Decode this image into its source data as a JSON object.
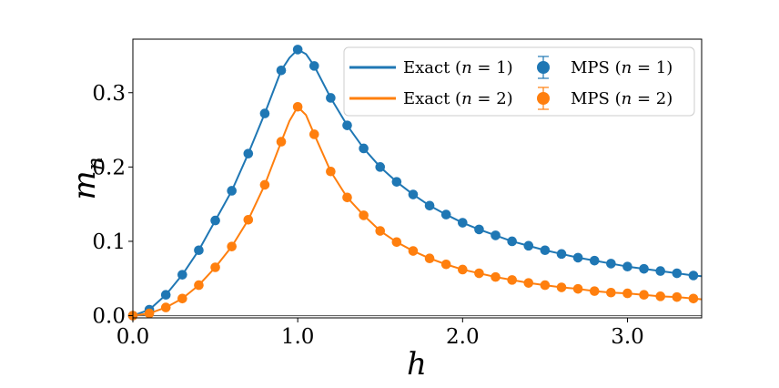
{
  "chart_data": {
    "type": "line",
    "title": "",
    "xlabel": "h",
    "ylabel": "m_n",
    "ylabel_base": "m",
    "ylabel_sub": "n",
    "xlim": [
      0.0,
      3.45
    ],
    "ylim": [
      -0.003,
      0.372
    ],
    "xticks": [
      0.0,
      1.0,
      2.0,
      3.0
    ],
    "xtick_labels": [
      "0.0",
      "1.0",
      "2.0",
      "3.0"
    ],
    "yticks": [
      0.0,
      0.1,
      0.2,
      0.3
    ],
    "ytick_labels": [
      "0.0",
      "0.1",
      "0.2",
      "0.3"
    ],
    "grid": false,
    "reference_line_y": 0.0,
    "legend_placement": "top-right",
    "colors": {
      "n1": "#1f77b4",
      "n2": "#ff7f0e"
    },
    "series": [
      {
        "name": "Exact (n = 1)",
        "kind": "line",
        "color": "#1f77b4",
        "x": [
          0.0,
          0.1,
          0.2,
          0.3,
          0.4,
          0.5,
          0.6,
          0.7,
          0.8,
          0.9,
          0.95,
          1.0,
          1.05,
          1.1,
          1.2,
          1.3,
          1.4,
          1.5,
          1.6,
          1.7,
          1.8,
          1.9,
          2.0,
          2.1,
          2.2,
          2.3,
          2.4,
          2.5,
          2.6,
          2.7,
          2.8,
          2.9,
          3.0,
          3.1,
          3.2,
          3.3,
          3.4,
          3.45
        ],
        "y": [
          0.0,
          0.008,
          0.028,
          0.055,
          0.088,
          0.128,
          0.168,
          0.218,
          0.272,
          0.33,
          0.347,
          0.358,
          0.352,
          0.336,
          0.293,
          0.256,
          0.225,
          0.2,
          0.18,
          0.163,
          0.148,
          0.136,
          0.125,
          0.116,
          0.108,
          0.1,
          0.094,
          0.088,
          0.083,
          0.078,
          0.074,
          0.07,
          0.066,
          0.063,
          0.06,
          0.057,
          0.054,
          0.053
        ]
      },
      {
        "name": "Exact (n = 2)",
        "kind": "line",
        "color": "#ff7f0e",
        "x": [
          0.0,
          0.1,
          0.2,
          0.3,
          0.4,
          0.5,
          0.6,
          0.7,
          0.8,
          0.9,
          0.95,
          1.0,
          1.05,
          1.1,
          1.2,
          1.3,
          1.4,
          1.5,
          1.6,
          1.7,
          1.8,
          1.9,
          2.0,
          2.1,
          2.2,
          2.3,
          2.4,
          2.5,
          2.6,
          2.7,
          2.8,
          2.9,
          3.0,
          3.1,
          3.2,
          3.3,
          3.4,
          3.45
        ],
        "y": [
          0.0,
          0.003,
          0.011,
          0.023,
          0.041,
          0.065,
          0.093,
          0.129,
          0.176,
          0.234,
          0.262,
          0.281,
          0.27,
          0.244,
          0.194,
          0.159,
          0.135,
          0.114,
          0.099,
          0.087,
          0.077,
          0.069,
          0.062,
          0.057,
          0.052,
          0.048,
          0.044,
          0.041,
          0.038,
          0.036,
          0.033,
          0.031,
          0.03,
          0.028,
          0.026,
          0.025,
          0.023,
          0.022
        ]
      },
      {
        "name": "MPS (n = 1)",
        "kind": "errorbar",
        "color": "#1f77b4",
        "x": [
          0.0,
          0.1,
          0.2,
          0.3,
          0.4,
          0.5,
          0.6,
          0.7,
          0.8,
          0.9,
          1.0,
          1.1,
          1.2,
          1.3,
          1.4,
          1.5,
          1.6,
          1.7,
          1.8,
          1.9,
          2.0,
          2.1,
          2.2,
          2.3,
          2.4,
          2.5,
          2.6,
          2.7,
          2.8,
          2.9,
          3.0,
          3.1,
          3.2,
          3.3,
          3.4
        ],
        "y": [
          0.0,
          0.008,
          0.028,
          0.055,
          0.088,
          0.128,
          0.168,
          0.218,
          0.272,
          0.33,
          0.358,
          0.336,
          0.293,
          0.256,
          0.225,
          0.2,
          0.18,
          0.163,
          0.148,
          0.136,
          0.125,
          0.116,
          0.108,
          0.1,
          0.094,
          0.088,
          0.083,
          0.078,
          0.074,
          0.07,
          0.066,
          0.063,
          0.06,
          0.057,
          0.054
        ],
        "xerr": 0.02
      },
      {
        "name": "MPS (n = 2)",
        "kind": "errorbar",
        "color": "#ff7f0e",
        "x": [
          0.0,
          0.1,
          0.2,
          0.3,
          0.4,
          0.5,
          0.6,
          0.7,
          0.8,
          0.9,
          1.0,
          1.1,
          1.2,
          1.3,
          1.4,
          1.5,
          1.6,
          1.7,
          1.8,
          1.9,
          2.0,
          2.1,
          2.2,
          2.3,
          2.4,
          2.5,
          2.6,
          2.7,
          2.8,
          2.9,
          3.0,
          3.1,
          3.2,
          3.3,
          3.4
        ],
        "y": [
          0.0,
          0.003,
          0.011,
          0.023,
          0.041,
          0.065,
          0.093,
          0.129,
          0.176,
          0.234,
          0.281,
          0.244,
          0.194,
          0.159,
          0.135,
          0.114,
          0.099,
          0.087,
          0.077,
          0.069,
          0.062,
          0.057,
          0.052,
          0.048,
          0.044,
          0.041,
          0.038,
          0.036,
          0.033,
          0.031,
          0.03,
          0.028,
          0.026,
          0.025,
          0.023
        ],
        "xerr": 0.02
      }
    ],
    "legend": {
      "exact_n1": {
        "prefix": "Exact (",
        "var": "n",
        "suffix": " = 1)"
      },
      "exact_n2": {
        "prefix": "Exact (",
        "var": "n",
        "suffix": " = 2)"
      },
      "mps_n1": {
        "prefix": "MPS (",
        "var": "n",
        "suffix": " = 1)"
      },
      "mps_n2": {
        "prefix": "MPS (",
        "var": "n",
        "suffix": " = 2)"
      }
    }
  }
}
